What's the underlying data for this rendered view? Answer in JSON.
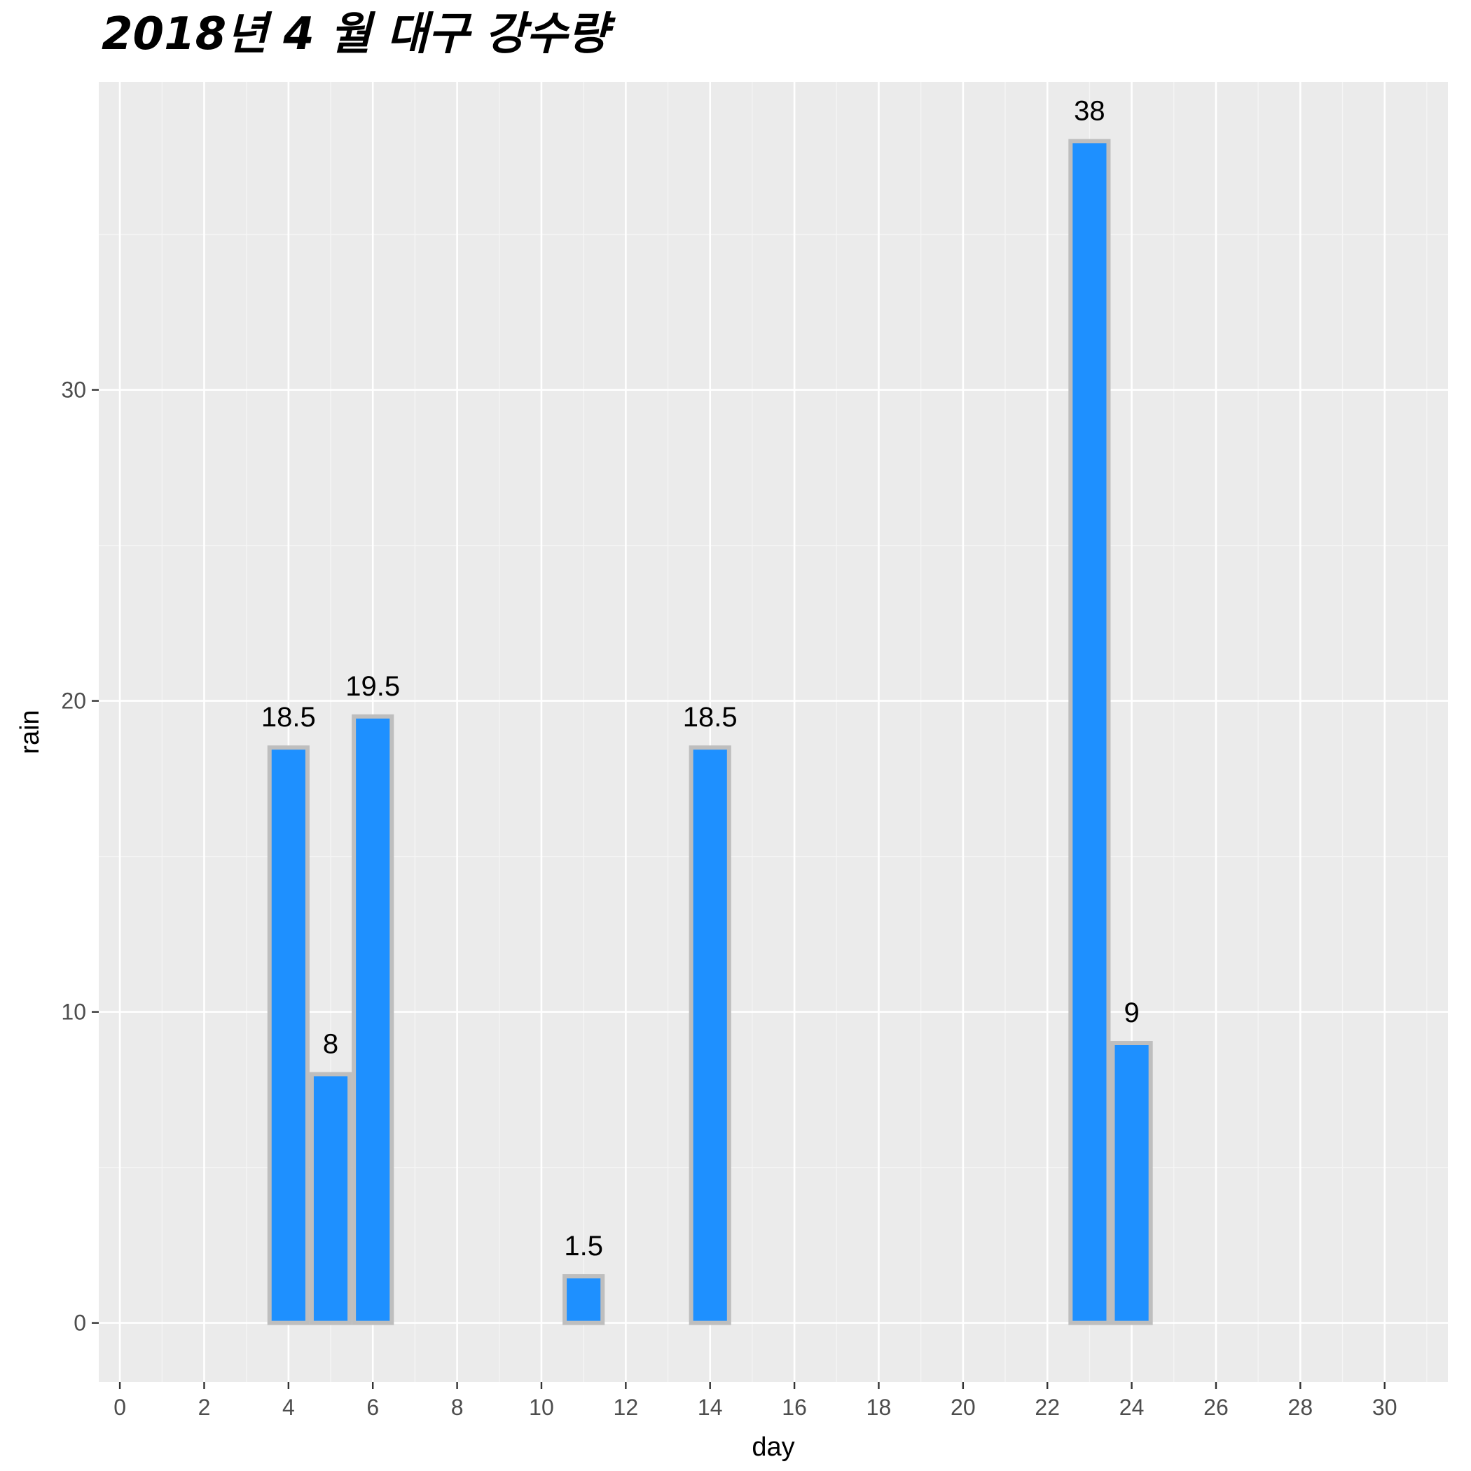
{
  "chart_data": {
    "type": "bar",
    "title": "2018년 4 월 대구 강수량",
    "xlabel": "day",
    "ylabel": "rain",
    "x": [
      4,
      5,
      6,
      11,
      14,
      23,
      24
    ],
    "values": [
      18.5,
      8,
      19.5,
      1.5,
      18.5,
      38,
      9
    ],
    "data_labels": [
      "18.5",
      "8",
      "19.5",
      "1.5",
      "18.5",
      "38",
      "9"
    ],
    "xlim": [
      -0.5,
      31.5
    ],
    "ylim": [
      -1.9,
      39.9
    ],
    "x_ticks": [
      0,
      2,
      4,
      6,
      8,
      10,
      12,
      14,
      16,
      18,
      20,
      22,
      24,
      26,
      28,
      30
    ],
    "x_tick_labels": [
      "0",
      "2",
      "4",
      "6",
      "8",
      "10",
      "12",
      "14",
      "16",
      "18",
      "20",
      "22",
      "24",
      "26",
      "28",
      "30"
    ],
    "y_ticks": [
      0,
      10,
      20,
      30
    ],
    "y_tick_labels": [
      "0",
      "10",
      "20",
      "30"
    ],
    "grid": true,
    "legend": "none",
    "colors": {
      "bar_fill": "#1e90ff",
      "bar_outline": "#bebebe",
      "panel_background": "#ebebeb",
      "grid_major": "#ffffff",
      "grid_minor": "#f5f5f5",
      "tick_text": "#4d4d4d"
    }
  }
}
